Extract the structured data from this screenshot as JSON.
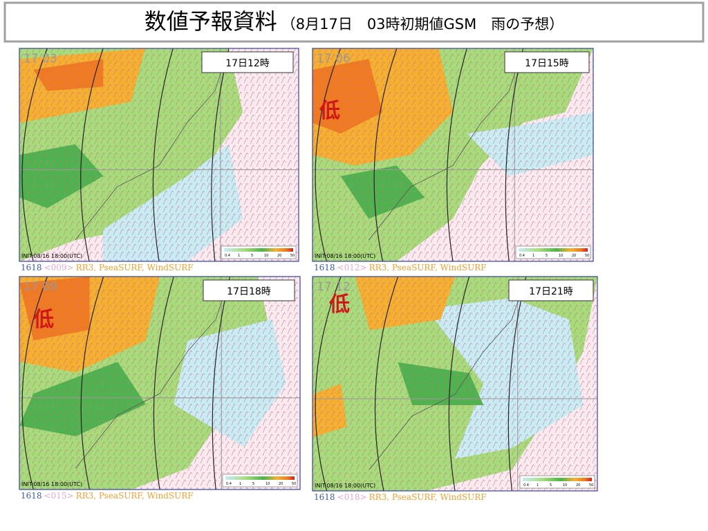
{
  "title": "数値予報資料",
  "subtitle": "（8月17日　03時初期値GSM　雨の予想）",
  "legend_ticks": [
    0.4,
    1,
    5,
    10,
    20,
    50
  ],
  "panels": [
    {
      "time_label": "17日12時",
      "map_time": "17 03",
      "init": "INIT:08/16 18:00(UTC)",
      "caption": {
        "run": "1618",
        "step": "<009>",
        "fields": "RR3, PseaSURF, WindSURF"
      }
    },
    {
      "time_label": "17日15時",
      "map_time": "17 06",
      "init": "INIT:08/16 18:00(UTC)",
      "caption": {
        "run": "1618",
        "step": "<012>",
        "fields": "RR3, PseaSURF, WindSURF"
      },
      "low": "低"
    },
    {
      "time_label": "17日18時",
      "map_time": "17 09",
      "init": "INIT:08/16 18:00(UTC)",
      "caption": {
        "run": "1618",
        "step": "<015>",
        "fields": "RR3, PseaSURF, WindSURF"
      },
      "low": "低"
    },
    {
      "time_label": "17日21時",
      "map_time": "17 12",
      "init": "INIT:08/16 18:00(UTC)",
      "caption": {
        "run": "1618",
        "step": "<018>",
        "fields": "RR3, PseaSURF, WindSURF"
      },
      "low": "低"
    }
  ]
}
